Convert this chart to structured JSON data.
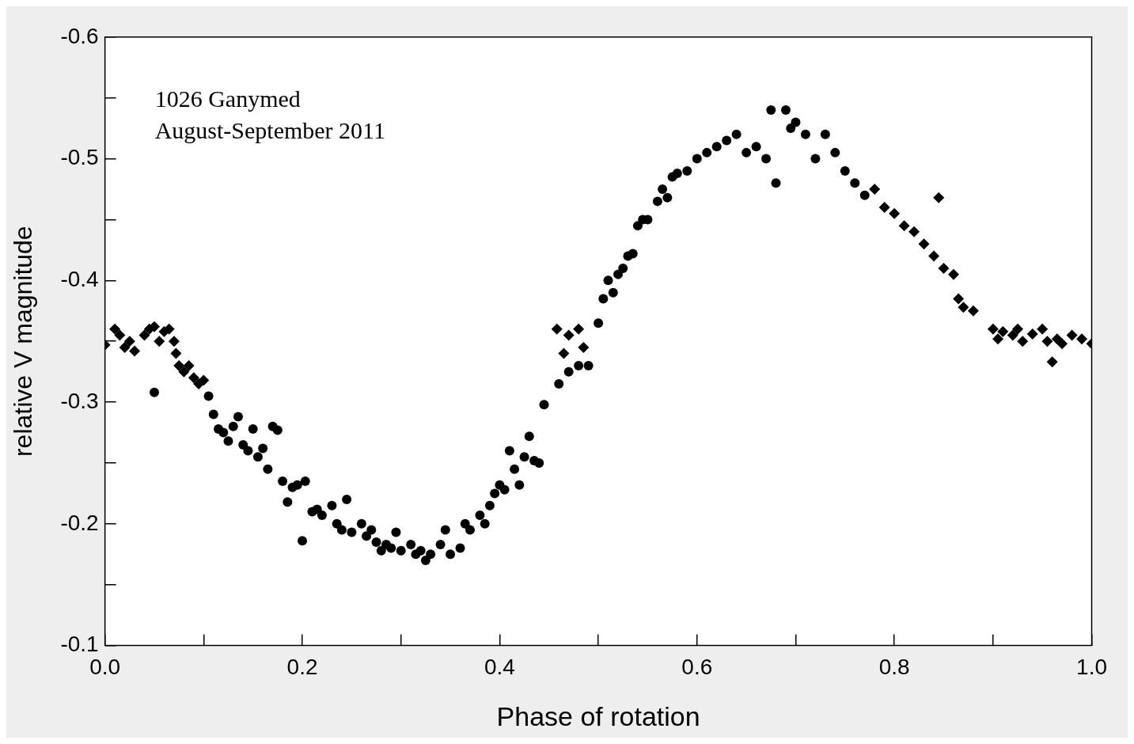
{
  "chart_data": {
    "type": "scatter",
    "xlabel": "Phase of rotation",
    "ylabel": "relative V magnitude",
    "annotations": [
      "1026 Ganymed",
      "August-September 2011"
    ],
    "xlim": [
      0,
      1
    ],
    "ylim": [
      -0.1,
      -0.6
    ],
    "xticks": [
      {
        "value": 0,
        "label": "0.0"
      },
      {
        "value": 0.1,
        "label": null
      },
      0.2,
      {
        "value": 0.3,
        "label": null
      },
      0.4,
      {
        "value": 0.5,
        "label": null
      },
      0.6,
      {
        "value": 0.7,
        "label": null
      },
      0.8,
      {
        "value": 0.9,
        "label": null
      },
      {
        "value": 1,
        "label": "1.0"
      }
    ],
    "yticks": [
      -0.6,
      {
        "value": -0.55,
        "label": null
      },
      -0.5,
      {
        "value": -0.45,
        "label": null
      },
      -0.4,
      {
        "value": -0.35,
        "label": null
      },
      -0.3,
      {
        "value": -0.25,
        "label": null
      },
      -0.2,
      {
        "value": -0.15,
        "label": null
      },
      -0.1
    ],
    "grid": false,
    "legend": false,
    "series": [
      {
        "color": "#000000",
        "marker": "diamond",
        "x": [
          0.0,
          0.01,
          0.015,
          0.02,
          0.025,
          0.03,
          0.04,
          0.045,
          0.05,
          0.055,
          0.06,
          0.065,
          0.07,
          0.072,
          0.075,
          0.08,
          0.085,
          0.09,
          0.095,
          0.1,
          0.458,
          0.465,
          0.47,
          0.48,
          0.485,
          0.78,
          0.79,
          0.8,
          0.81,
          0.82,
          0.83,
          0.84,
          0.845,
          0.85,
          0.86,
          0.865,
          0.87,
          0.88,
          0.9,
          0.905,
          0.91,
          0.92,
          0.925,
          0.93,
          0.94,
          0.95,
          0.955,
          0.96,
          0.965,
          0.97,
          0.98,
          0.99,
          1.0
        ],
        "values": [
          -0.347,
          -0.36,
          -0.355,
          -0.345,
          -0.35,
          -0.342,
          -0.355,
          -0.36,
          -0.362,
          -0.35,
          -0.358,
          -0.36,
          -0.35,
          -0.34,
          -0.33,
          -0.325,
          -0.33,
          -0.32,
          -0.315,
          -0.318,
          -0.36,
          -0.34,
          -0.355,
          -0.36,
          -0.345,
          -0.475,
          -0.46,
          -0.455,
          -0.445,
          -0.44,
          -0.43,
          -0.42,
          -0.468,
          -0.41,
          -0.405,
          -0.385,
          -0.378,
          -0.375,
          -0.36,
          -0.352,
          -0.358,
          -0.355,
          -0.36,
          -0.35,
          -0.356,
          -0.36,
          -0.35,
          -0.333,
          -0.352,
          -0.348,
          -0.355,
          -0.352,
          -0.348
        ]
      },
      {
        "color": "#000000",
        "marker": "circle",
        "x": [
          0.05,
          0.105,
          0.11,
          0.115,
          0.12,
          0.125,
          0.13,
          0.135,
          0.14,
          0.145,
          0.15,
          0.155,
          0.16,
          0.165,
          0.17,
          0.175,
          0.18,
          0.185,
          0.19,
          0.195,
          0.2,
          0.203,
          0.21,
          0.215,
          0.22,
          0.23,
          0.235,
          0.24,
          0.245,
          0.25,
          0.26,
          0.265,
          0.27,
          0.275,
          0.28,
          0.285,
          0.29,
          0.295,
          0.3,
          0.31,
          0.315,
          0.32,
          0.325,
          0.33,
          0.34,
          0.345,
          0.35,
          0.36,
          0.365,
          0.37,
          0.38,
          0.385,
          0.39,
          0.395,
          0.4,
          0.405,
          0.41,
          0.415,
          0.42,
          0.425,
          0.43,
          0.435,
          0.44,
          0.445,
          0.46,
          0.47,
          0.48,
          0.49,
          0.5,
          0.505,
          0.51,
          0.515,
          0.52,
          0.525,
          0.53,
          0.535,
          0.54,
          0.545,
          0.55,
          0.56,
          0.565,
          0.57,
          0.575,
          0.58,
          0.59,
          0.6,
          0.61,
          0.62,
          0.63,
          0.64,
          0.65,
          0.66,
          0.67,
          0.675,
          0.68,
          0.69,
          0.695,
          0.7,
          0.71,
          0.72,
          0.73,
          0.74,
          0.75,
          0.76,
          0.77
        ],
        "values": [
          -0.308,
          -0.305,
          -0.29,
          -0.278,
          -0.275,
          -0.268,
          -0.28,
          -0.288,
          -0.265,
          -0.26,
          -0.278,
          -0.255,
          -0.262,
          -0.245,
          -0.28,
          -0.277,
          -0.235,
          -0.218,
          -0.23,
          -0.232,
          -0.186,
          -0.235,
          -0.21,
          -0.212,
          -0.207,
          -0.215,
          -0.2,
          -0.195,
          -0.22,
          -0.193,
          -0.2,
          -0.19,
          -0.195,
          -0.185,
          -0.178,
          -0.183,
          -0.18,
          -0.193,
          -0.178,
          -0.183,
          -0.175,
          -0.178,
          -0.17,
          -0.175,
          -0.183,
          -0.195,
          -0.175,
          -0.18,
          -0.2,
          -0.195,
          -0.207,
          -0.2,
          -0.215,
          -0.225,
          -0.232,
          -0.228,
          -0.26,
          -0.245,
          -0.232,
          -0.255,
          -0.272,
          -0.252,
          -0.25,
          -0.298,
          -0.315,
          -0.325,
          -0.33,
          -0.33,
          -0.365,
          -0.385,
          -0.4,
          -0.39,
          -0.405,
          -0.41,
          -0.42,
          -0.422,
          -0.445,
          -0.45,
          -0.45,
          -0.465,
          -0.475,
          -0.468,
          -0.485,
          -0.488,
          -0.49,
          -0.5,
          -0.505,
          -0.51,
          -0.515,
          -0.52,
          -0.505,
          -0.51,
          -0.5,
          -0.54,
          -0.48,
          -0.54,
          -0.525,
          -0.53,
          -0.52,
          -0.5,
          -0.52,
          -0.505,
          -0.49,
          -0.48,
          -0.47
        ]
      }
    ]
  }
}
